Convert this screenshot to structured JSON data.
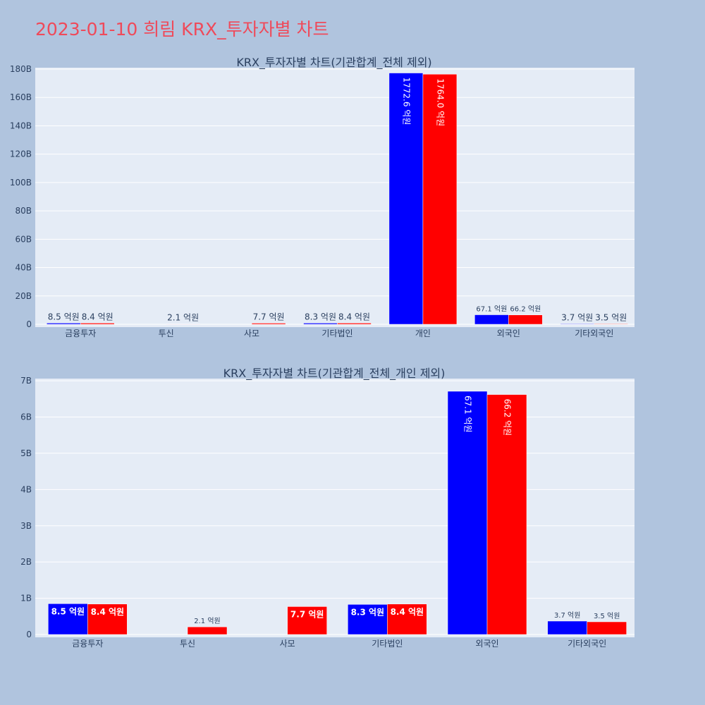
{
  "page": {
    "title": "2023-01-10 희림 KRX_투자자별 차트"
  },
  "colors": {
    "buy": "#0000ff",
    "sell": "#ff0000",
    "plot_bg": "#e5ecf6",
    "page_bg": "#b0c4de",
    "title": "#ef4a5a"
  },
  "chart_data": [
    {
      "type": "bar",
      "title": "KRX_투자자별 차트(기관합계_전체 제외)",
      "categories": [
        "금융투자",
        "투신",
        "사모",
        "기타법인",
        "개인",
        "외국인",
        "기타외국인"
      ],
      "series": [
        {
          "color": "#0000ff",
          "values": [
            850000000,
            null,
            null,
            830000000,
            177260000000,
            6710000000,
            370000000
          ],
          "labels": [
            "8.5 억원",
            "",
            "",
            "8.3 억원",
            "1772.6 억원",
            "67.1 억원",
            "3.7 억원"
          ]
        },
        {
          "color": "#ff0000",
          "values": [
            840000000,
            210000000,
            770000000,
            840000000,
            176400000000,
            6620000000,
            350000000
          ],
          "labels": [
            "8.4 억원",
            "2.1 억원",
            "7.7 억원",
            "8.4 억원",
            "1764.0 억원",
            "66.2 억원",
            "3.5 억원"
          ]
        }
      ],
      "ylim": [
        0,
        181000000000
      ],
      "yticks": [
        0,
        20000000000,
        40000000000,
        60000000000,
        80000000000,
        100000000000,
        120000000000,
        140000000000,
        160000000000,
        180000000000
      ],
      "ytick_labels": [
        "0",
        "20B",
        "40B",
        "60B",
        "80B",
        "100B",
        "120B",
        "140B",
        "160B",
        "180B"
      ],
      "grid": true
    },
    {
      "type": "bar",
      "title": "KRX_투자자별 차트(기관합계_전체_개인 제외)",
      "categories": [
        "금융투자",
        "투신",
        "사모",
        "기타법인",
        "외국인",
        "기타외국인"
      ],
      "series": [
        {
          "color": "#0000ff",
          "values": [
            850000000,
            null,
            null,
            830000000,
            6710000000,
            370000000
          ],
          "labels": [
            "8.5 억원",
            "",
            "",
            "8.3 억원",
            "67.1 억원",
            "3.7 억원"
          ]
        },
        {
          "color": "#ff0000",
          "values": [
            840000000,
            210000000,
            770000000,
            840000000,
            6620000000,
            350000000
          ],
          "labels": [
            "8.4 억원",
            "2.1 억원",
            "7.7 억원",
            "8.4 억원",
            "66.2 억원",
            "3.5 억원"
          ]
        }
      ],
      "ylim": [
        0,
        7060000000
      ],
      "yticks": [
        0,
        1000000000,
        2000000000,
        3000000000,
        4000000000,
        5000000000,
        6000000000,
        7000000000
      ],
      "ytick_labels": [
        "0",
        "1B",
        "2B",
        "3B",
        "4B",
        "5B",
        "6B",
        "7B"
      ],
      "grid": true
    }
  ]
}
